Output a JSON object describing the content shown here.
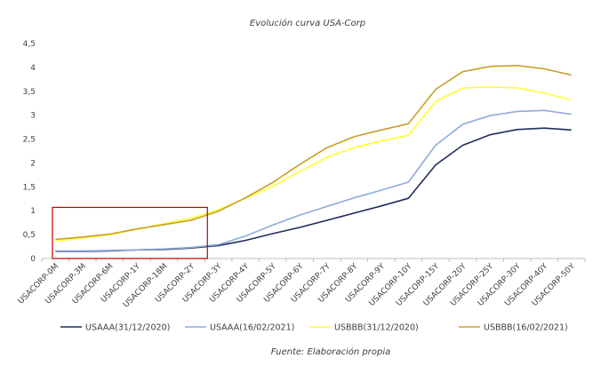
{
  "chart_data": {
    "type": "line",
    "title": "Evolución curva USA-Corp",
    "source": "Fuente: Elaboración propia",
    "categories": [
      "USACORP-0M",
      "USACORP-3M",
      "USACORP-6M",
      "USACORP-1Y",
      "USACORP-18M",
      "USACORP-2Y",
      "USACORP-3Y",
      "USACORP-4Y",
      "USACORP-5Y",
      "USACORP-6Y",
      "USACORP-7Y",
      "USACORP-8Y",
      "USACORP-9Y",
      "USACORP-10Y",
      "USACORP-15Y",
      "USACORP-20Y",
      "USACORP-25Y",
      "USACORP-30Y",
      "USACORP-40Y",
      "USACORP-50Y"
    ],
    "ylim": [
      0,
      4.5
    ],
    "yticks": [
      "0",
      "0,5",
      "1",
      "1,5",
      "2",
      "2,5",
      "3",
      "3,5",
      "4",
      "4,5"
    ],
    "grid": false,
    "legend_position": "bottom",
    "highlight_box": {
      "from_category": "USACORP-0M",
      "to_category": "USACORP-3Y",
      "y_range": [
        0,
        1.07
      ],
      "color": "#c00000"
    },
    "series": [
      {
        "name": "USAAA(31/12/2020)",
        "color": "#1f2d5c",
        "values": [
          0.15,
          0.15,
          0.16,
          0.18,
          0.19,
          0.22,
          0.27,
          0.38,
          0.52,
          0.65,
          0.8,
          0.95,
          1.1,
          1.26,
          1.96,
          2.37,
          2.59,
          2.7,
          2.73,
          2.69
        ]
      },
      {
        "name": "USAAA(16/02/2021)",
        "color": "#8eaad8",
        "values": [
          0.16,
          0.16,
          0.17,
          0.18,
          0.2,
          0.23,
          0.29,
          0.47,
          0.7,
          0.91,
          1.09,
          1.27,
          1.43,
          1.6,
          2.37,
          2.81,
          2.99,
          3.08,
          3.1,
          3.02
        ]
      },
      {
        "name": "USBBB(31/12/2020)",
        "color": "#ffff33",
        "values": [
          0.36,
          0.43,
          0.5,
          0.61,
          0.73,
          0.84,
          1.02,
          1.26,
          1.51,
          1.82,
          2.12,
          2.32,
          2.46,
          2.58,
          3.29,
          3.57,
          3.59,
          3.57,
          3.46,
          3.32
        ]
      },
      {
        "name": "USBBB(16/02/2021)",
        "color": "#c8a028",
        "values": [
          0.4,
          0.45,
          0.51,
          0.62,
          0.71,
          0.8,
          0.99,
          1.27,
          1.59,
          1.97,
          2.32,
          2.55,
          2.69,
          2.82,
          3.54,
          3.91,
          4.02,
          4.04,
          3.97,
          3.84
        ]
      }
    ]
  }
}
